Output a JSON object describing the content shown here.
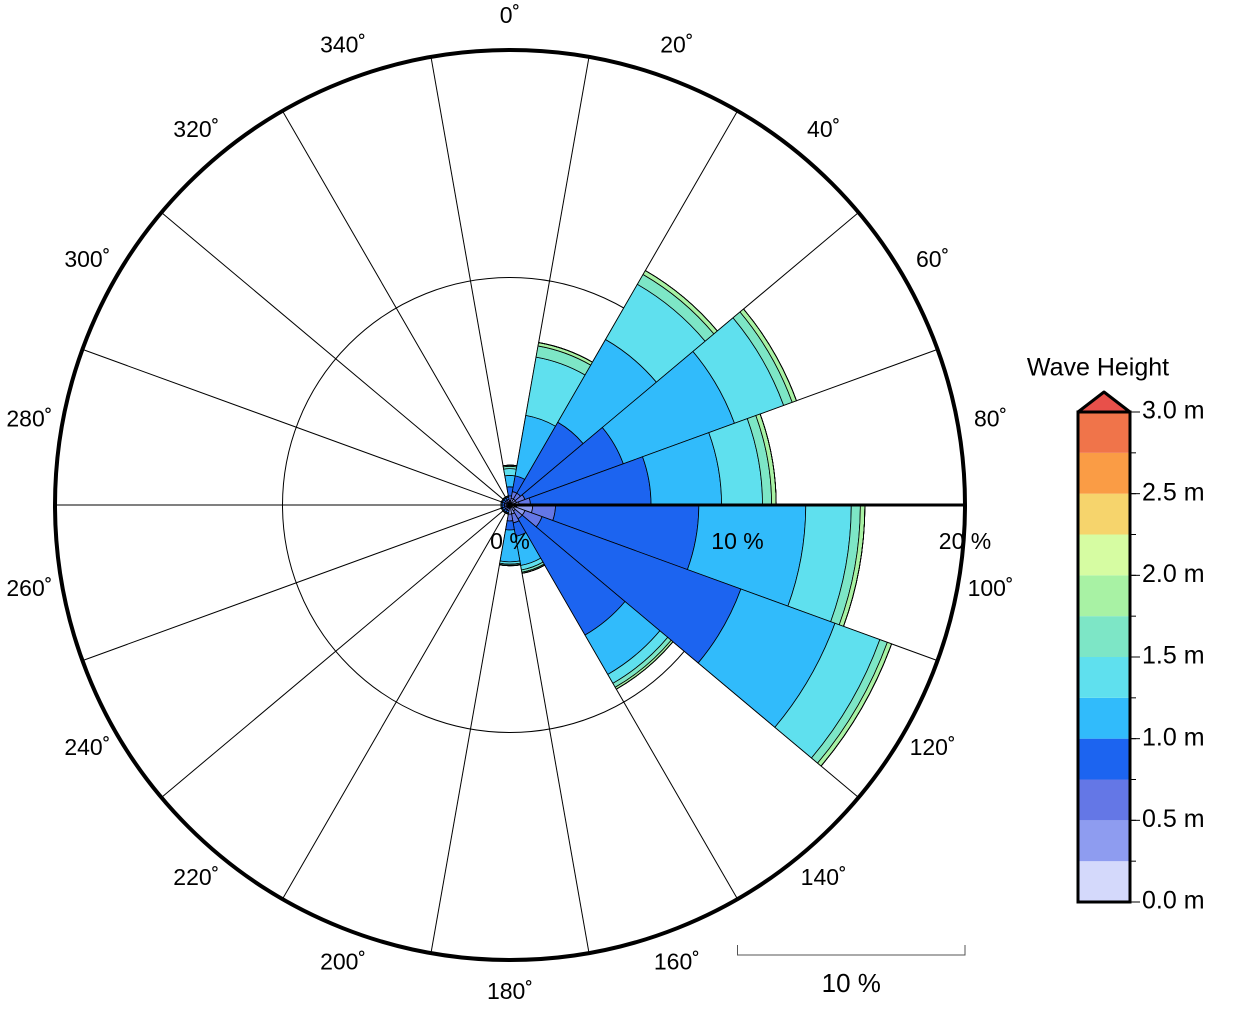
{
  "chart_data": {
    "type": "polar-stacked-bar",
    "x": [
      0,
      20,
      40,
      60,
      80,
      100,
      120,
      140,
      160,
      180,
      200,
      220,
      240,
      260,
      280,
      300,
      320,
      340
    ],
    "sector_width": 20,
    "xticks": [
      {
        "value": 0,
        "label": "0˚"
      },
      {
        "value": 20,
        "label": "20˚"
      },
      {
        "value": 40,
        "label": "40˚"
      },
      {
        "value": 60,
        "label": "60˚"
      },
      {
        "value": 80,
        "label": "80˚"
      },
      {
        "value": 100,
        "label": "100˚"
      },
      {
        "value": 120,
        "label": "120˚"
      },
      {
        "value": 140,
        "label": "140˚"
      },
      {
        "value": 160,
        "label": "160˚"
      },
      {
        "value": 180,
        "label": "180˚"
      },
      {
        "value": 200,
        "label": "200˚"
      },
      {
        "value": 220,
        "label": "220˚"
      },
      {
        "value": 240,
        "label": "240˚"
      },
      {
        "value": 260,
        "label": "260˚"
      },
      {
        "value": 280,
        "label": "280˚"
      },
      {
        "value": 300,
        "label": "300˚"
      },
      {
        "value": 320,
        "label": "320˚"
      },
      {
        "value": 340,
        "label": "340˚"
      }
    ],
    "ylim": [
      0,
      20
    ],
    "yticks": [
      {
        "value": 0,
        "label": "0 %"
      },
      {
        "value": 10,
        "label": "10 %"
      },
      {
        "value": 20,
        "label": "20 %"
      }
    ],
    "scale_bar": {
      "value": 10,
      "label": "10 %"
    },
    "series": [
      {
        "color": "#d4d9fb",
        "values": [
          0.1,
          0.1,
          0.1,
          0.1,
          0.1,
          0.3,
          0.2,
          0.1,
          0.1,
          0.1,
          0.05,
          0.05,
          0.05,
          0.05,
          0.05,
          0.05,
          0.05,
          0.05
        ]
      },
      {
        "color": "#8e9cf0",
        "values": [
          0.1,
          0.2,
          0.2,
          0.2,
          0.3,
          0.7,
          0.5,
          0.2,
          0.3,
          0.3,
          0.1,
          0.1,
          0.1,
          0.1,
          0.1,
          0.1,
          0.1,
          0.1
        ]
      },
      {
        "color": "#6477e6",
        "values": [
          0.2,
          0.3,
          0.3,
          0.4,
          0.5,
          1.0,
          0.8,
          0.4,
          0.4,
          0.3,
          0.1,
          0.1,
          0.1,
          0.1,
          0.1,
          0.1,
          0.1,
          0.1
        ]
      },
      {
        "color": "#1c64f0",
        "values": [
          0.4,
          0.7,
          3.6,
          4.6,
          5.3,
          6.3,
          9.3,
          5.9,
          0.6,
          0.4,
          0.1,
          0.1,
          0.1,
          0.1,
          0.1,
          0.1,
          0.1,
          0.1
        ]
      },
      {
        "color": "#31bbfb",
        "values": [
          0.5,
          2.7,
          4.2,
          5.2,
          3.1,
          4.7,
          4.4,
          2.0,
          1.3,
          1.4,
          0.05,
          0.05,
          0.05,
          0.05,
          0.05,
          0.05,
          0.05,
          0.05
        ]
      },
      {
        "color": "#5fe0ee",
        "values": [
          0.3,
          2.6,
          2.8,
          2.3,
          1.8,
          2.0,
          2.1,
          0.45,
          0.2,
          0.1,
          0,
          0,
          0,
          0,
          0,
          0,
          0,
          0
        ]
      },
      {
        "color": "#7de6c6",
        "values": [
          0.1,
          0.5,
          0.5,
          0.4,
          0.4,
          0.4,
          0.35,
          0.2,
          0.1,
          0.05,
          0,
          0,
          0,
          0,
          0,
          0,
          0,
          0
        ]
      },
      {
        "color": "#a8f2a4",
        "values": [
          0.05,
          0.15,
          0.2,
          0.2,
          0.2,
          0.2,
          0.2,
          0.1,
          0.05,
          0.02,
          0,
          0,
          0,
          0,
          0,
          0,
          0,
          0
        ]
      },
      {
        "color": "#d6fca2",
        "values": [
          0,
          0,
          0,
          0,
          0,
          0,
          0,
          0,
          0,
          0,
          0,
          0,
          0,
          0,
          0,
          0,
          0,
          0
        ]
      },
      {
        "color": "#f6d46c",
        "values": [
          0,
          0,
          0,
          0,
          0,
          0,
          0,
          0,
          0,
          0,
          0,
          0,
          0,
          0,
          0,
          0,
          0,
          0
        ]
      },
      {
        "color": "#fa9c45",
        "values": [
          0,
          0,
          0,
          0,
          0,
          0,
          0,
          0,
          0,
          0,
          0,
          0,
          0,
          0,
          0,
          0,
          0,
          0
        ]
      },
      {
        "color": "#f0744a",
        "values": [
          0,
          0,
          0,
          0,
          0,
          0,
          0,
          0,
          0,
          0,
          0,
          0,
          0,
          0,
          0,
          0,
          0,
          0
        ]
      }
    ],
    "colorbar": {
      "title": "Wave Height",
      "lim": [
        0,
        3
      ],
      "bins": [
        0,
        0.25,
        0.5,
        0.75,
        1.0,
        1.25,
        1.5,
        1.75,
        2.0,
        2.25,
        2.5,
        2.75,
        3.0
      ],
      "ticks": [
        {
          "value": 0,
          "label": "0.0 m"
        },
        {
          "value": 0.5,
          "label": "0.5 m"
        },
        {
          "value": 1.0,
          "label": "1.0 m"
        },
        {
          "value": 1.5,
          "label": "1.5 m"
        },
        {
          "value": 2.0,
          "label": "2.0 m"
        },
        {
          "value": 2.5,
          "label": "2.5 m"
        },
        {
          "value": 3.0,
          "label": "3.0 m"
        }
      ],
      "extend_color": "#e8504a"
    }
  }
}
